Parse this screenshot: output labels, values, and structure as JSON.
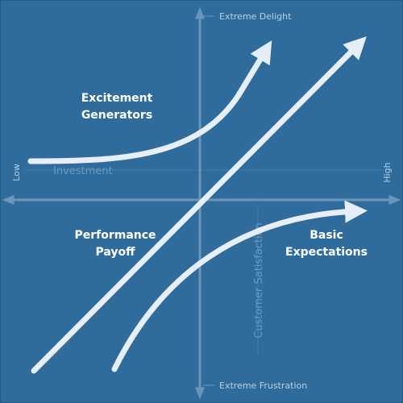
{
  "axes": {
    "top": "Extreme Delight",
    "bottom": "Extreme Frustration",
    "low": "Low",
    "high": "High",
    "x_label": "Investment",
    "y_label": "Customer Satisfaction"
  },
  "curves": [
    {
      "label": [
        "Excitement",
        "Generators"
      ]
    },
    {
      "label": [
        "Performance",
        "Payoff"
      ]
    },
    {
      "label": [
        "Basic",
        "Expectations"
      ]
    }
  ]
}
